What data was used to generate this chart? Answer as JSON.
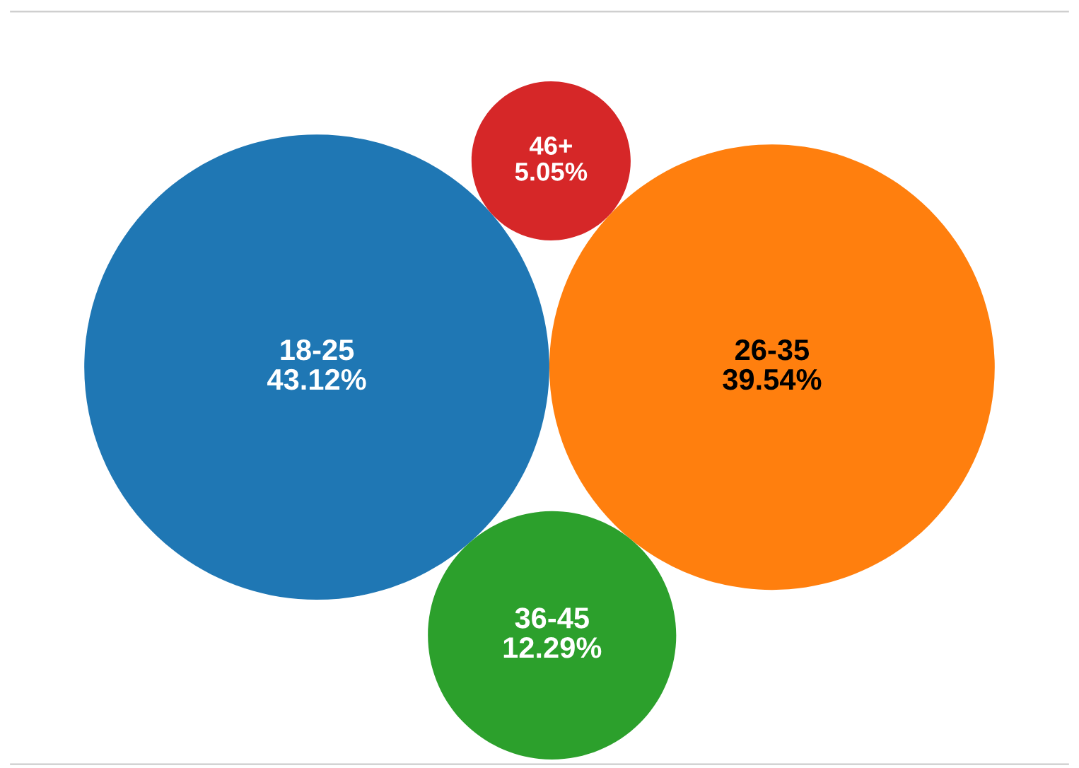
{
  "chart_data": {
    "type": "other",
    "categories": [
      "18-25",
      "26-35",
      "36-45",
      "46+"
    ],
    "values": [
      43.12,
      39.54,
      12.29,
      5.05
    ],
    "value_labels": [
      "43.12%",
      "39.54%",
      "12.29%",
      "5.05%"
    ],
    "colors": [
      "#1f77b4",
      "#ff7f0e",
      "#2ca02c",
      "#d62728"
    ]
  }
}
